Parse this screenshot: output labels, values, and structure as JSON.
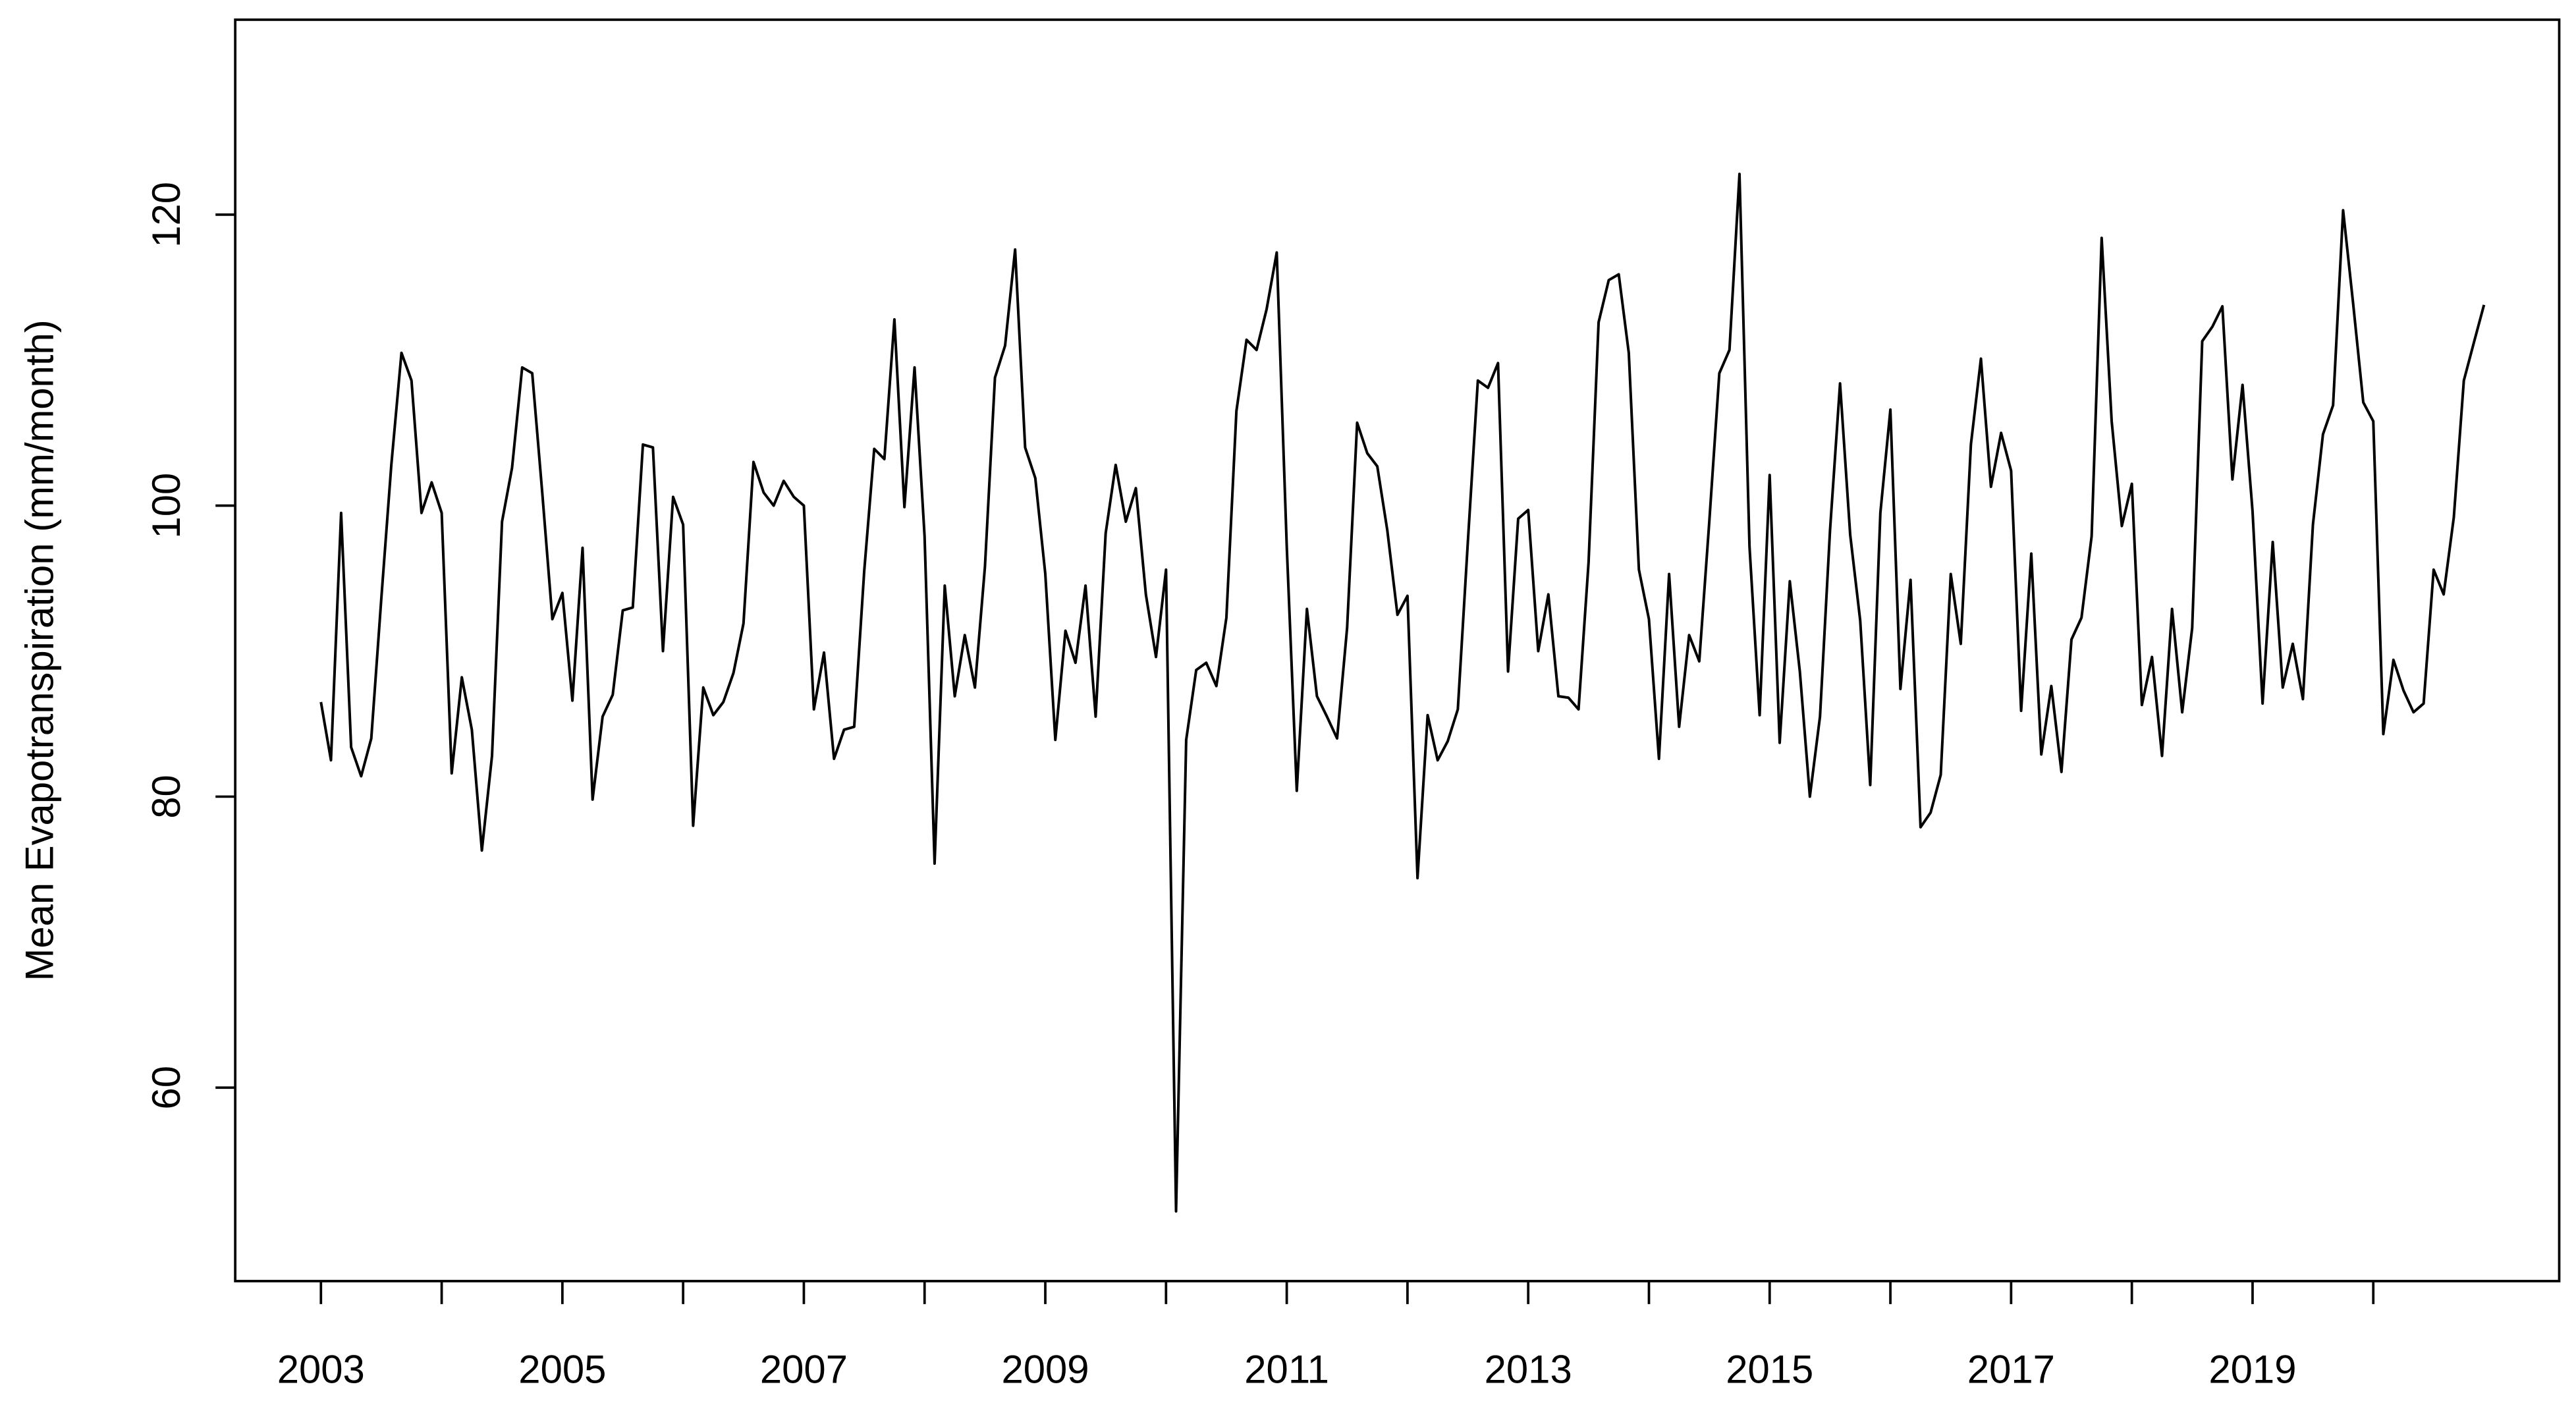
{
  "chart_data": {
    "type": "line",
    "y_label": "Mean Evapotranspiration (mm/month)",
    "color": "#000000",
    "x": [
      2003,
      2003.083,
      2003.167,
      2003.25,
      2003.333,
      2003.417,
      2003.5,
      2003.583,
      2003.667,
      2003.75,
      2003.833,
      2003.917,
      2004,
      2004.083,
      2004.167,
      2004.25,
      2004.333,
      2004.417,
      2004.5,
      2004.583,
      2004.667,
      2004.75,
      2004.833,
      2004.917,
      2005,
      2005.083,
      2005.167,
      2005.25,
      2005.333,
      2005.417,
      2005.5,
      2005.583,
      2005.667,
      2005.75,
      2005.833,
      2005.917,
      2006,
      2006.083,
      2006.167,
      2006.25,
      2006.333,
      2006.417,
      2006.5,
      2006.583,
      2006.667,
      2006.75,
      2006.833,
      2006.917,
      2007,
      2007.083,
      2007.167,
      2007.25,
      2007.333,
      2007.417,
      2007.5,
      2007.583,
      2007.667,
      2007.75,
      2007.833,
      2007.917,
      2008,
      2008.083,
      2008.167,
      2008.25,
      2008.333,
      2008.417,
      2008.5,
      2008.583,
      2008.667,
      2008.75,
      2008.833,
      2008.917,
      2009,
      2009.083,
      2009.167,
      2009.25,
      2009.333,
      2009.417,
      2009.5,
      2009.583,
      2009.667,
      2009.75,
      2009.833,
      2009.917,
      2010,
      2010.083,
      2010.167,
      2010.25,
      2010.333,
      2010.417,
      2010.5,
      2010.583,
      2010.667,
      2010.75,
      2010.833,
      2010.917,
      2011,
      2011.083,
      2011.167,
      2011.25,
      2011.333,
      2011.417,
      2011.5,
      2011.583,
      2011.667,
      2011.75,
      2011.833,
      2011.917,
      2012,
      2012.083,
      2012.167,
      2012.25,
      2012.333,
      2012.417,
      2012.5,
      2012.583,
      2012.667,
      2012.75,
      2012.833,
      2012.917,
      2013,
      2013.083,
      2013.167,
      2013.25,
      2013.333,
      2013.417,
      2013.5,
      2013.583,
      2013.667,
      2013.75,
      2013.833,
      2013.917,
      2014,
      2014.083,
      2014.167,
      2014.25,
      2014.333,
      2014.417,
      2014.5,
      2014.583,
      2014.667,
      2014.75,
      2014.833,
      2014.917,
      2015,
      2015.083,
      2015.167,
      2015.25,
      2015.333,
      2015.417,
      2015.5,
      2015.583,
      2015.667,
      2015.75,
      2015.833,
      2015.917,
      2016,
      2016.083,
      2016.167,
      2016.25,
      2016.333,
      2016.417,
      2016.5,
      2016.583,
      2016.667,
      2016.75,
      2016.833,
      2016.917,
      2017,
      2017.083,
      2017.167,
      2017.25,
      2017.333,
      2017.417,
      2017.5,
      2017.583,
      2017.667,
      2017.75,
      2017.833,
      2017.917,
      2018,
      2018.083,
      2018.167,
      2018.25,
      2018.333,
      2018.417,
      2018.5,
      2018.583,
      2018.667,
      2018.75,
      2018.833,
      2018.917,
      2019,
      2019.083,
      2019.167,
      2019.25,
      2019.333,
      2019.417,
      2019.5,
      2019.583,
      2019.667,
      2019.75,
      2019.833,
      2019.917,
      2020,
      2020.083,
      2020.167,
      2020.25,
      2020.333,
      2020.417,
      2020.5,
      2020.583,
      2020.667,
      2020.75,
      2020.833,
      2020.917
    ],
    "values": [
      86.5,
      82.5,
      99.5,
      83.4,
      81.4,
      84,
      93.6,
      102.8,
      110.5,
      108.6,
      99.5,
      101.6,
      99.5,
      81.6,
      88.2,
      84.6,
      76.3,
      82.8,
      98.9,
      102.6,
      109.5,
      109.1,
      100.9,
      92.2,
      94,
      86.6,
      97.1,
      79.8,
      85.5,
      87,
      92.8,
      93,
      104.2,
      104,
      90,
      100.6,
      98.7,
      78,
      87.5,
      85.6,
      86.5,
      88.5,
      91.9,
      103,
      100.9,
      100,
      101.7,
      100.6,
      100,
      86,
      89.9,
      82.6,
      84.6,
      84.8,
      95.5,
      103.9,
      103.2,
      112.8,
      99.9,
      109.5,
      97.9,
      75.4,
      94.5,
      86.9,
      91.1,
      87.5,
      95.8,
      108.8,
      111,
      117.6,
      104,
      101.9,
      95.3,
      83.9,
      91.4,
      89.2,
      94.5,
      85.5,
      98.1,
      102.8,
      98.9,
      101.2,
      93.9,
      89.6,
      95.6,
      51.5,
      83.9,
      88.7,
      89.2,
      87.6,
      92.3,
      106.5,
      111.4,
      110.7,
      113.5,
      117.4,
      97.2,
      80.4,
      92.9,
      86.9,
      85.5,
      84,
      91.6,
      105.7,
      103.6,
      102.7,
      98.3,
      92.5,
      93.8,
      74.4,
      85.6,
      82.5,
      83.8,
      86,
      97.5,
      108.6,
      108.1,
      109.8,
      88.6,
      99.1,
      99.7,
      90,
      93.9,
      86.9,
      86.8,
      86,
      96.1,
      112.6,
      115.5,
      115.9,
      110.5,
      95.6,
      92.2,
      82.6,
      95.3,
      84.8,
      91.1,
      89.3,
      98.9,
      109.1,
      110.7,
      122.8,
      97.2,
      85.6,
      102.1,
      83.7,
      94.8,
      88.6,
      80,
      85.5,
      98.3,
      108.4,
      98,
      92.1,
      80.8,
      99.5,
      106.6,
      87.4,
      94.9,
      77.9,
      78.9,
      81.5,
      95.3,
      90.5,
      104.2,
      110.1,
      101.3,
      105,
      102.4,
      85.9,
      96.7,
      82.9,
      87.6,
      81.7,
      90.8,
      92.3,
      97.9,
      118.4,
      105.8,
      98.6,
      101.5,
      86.3,
      89.6,
      82.8,
      92.9,
      85.8,
      91.6,
      111.3,
      112.3,
      113.7,
      101.8,
      108.3,
      99.6,
      86.4,
      97.5,
      87.5,
      90.5,
      86.7,
      98.7,
      104.9,
      106.9,
      120.3,
      113.9,
      107.1,
      105.8,
      84.3,
      89.4,
      87.3,
      85.8,
      86.4,
      95.6,
      93.9,
      99.2,
      108.6,
      111.2,
      113.8
    ],
    "xlim": [
      2002.29,
      2021.54
    ],
    "ylim": [
      46.7,
      133.4
    ],
    "yticks": [
      60,
      80,
      100,
      120
    ],
    "xticks": [
      2003,
      {
        "value": 2004,
        "label": null
      },
      2005,
      {
        "value": 2006,
        "label": null
      },
      2007,
      {
        "value": 2008,
        "label": null
      },
      2009,
      {
        "value": 2010,
        "label": null
      },
      2011,
      {
        "value": 2012,
        "label": null
      },
      2013,
      {
        "value": 2014,
        "label": null
      },
      2015,
      {
        "value": 2016,
        "label": null
      },
      2017,
      {
        "value": 2018,
        "label": null
      },
      2019,
      {
        "value": 2020,
        "label": null
      }
    ]
  }
}
